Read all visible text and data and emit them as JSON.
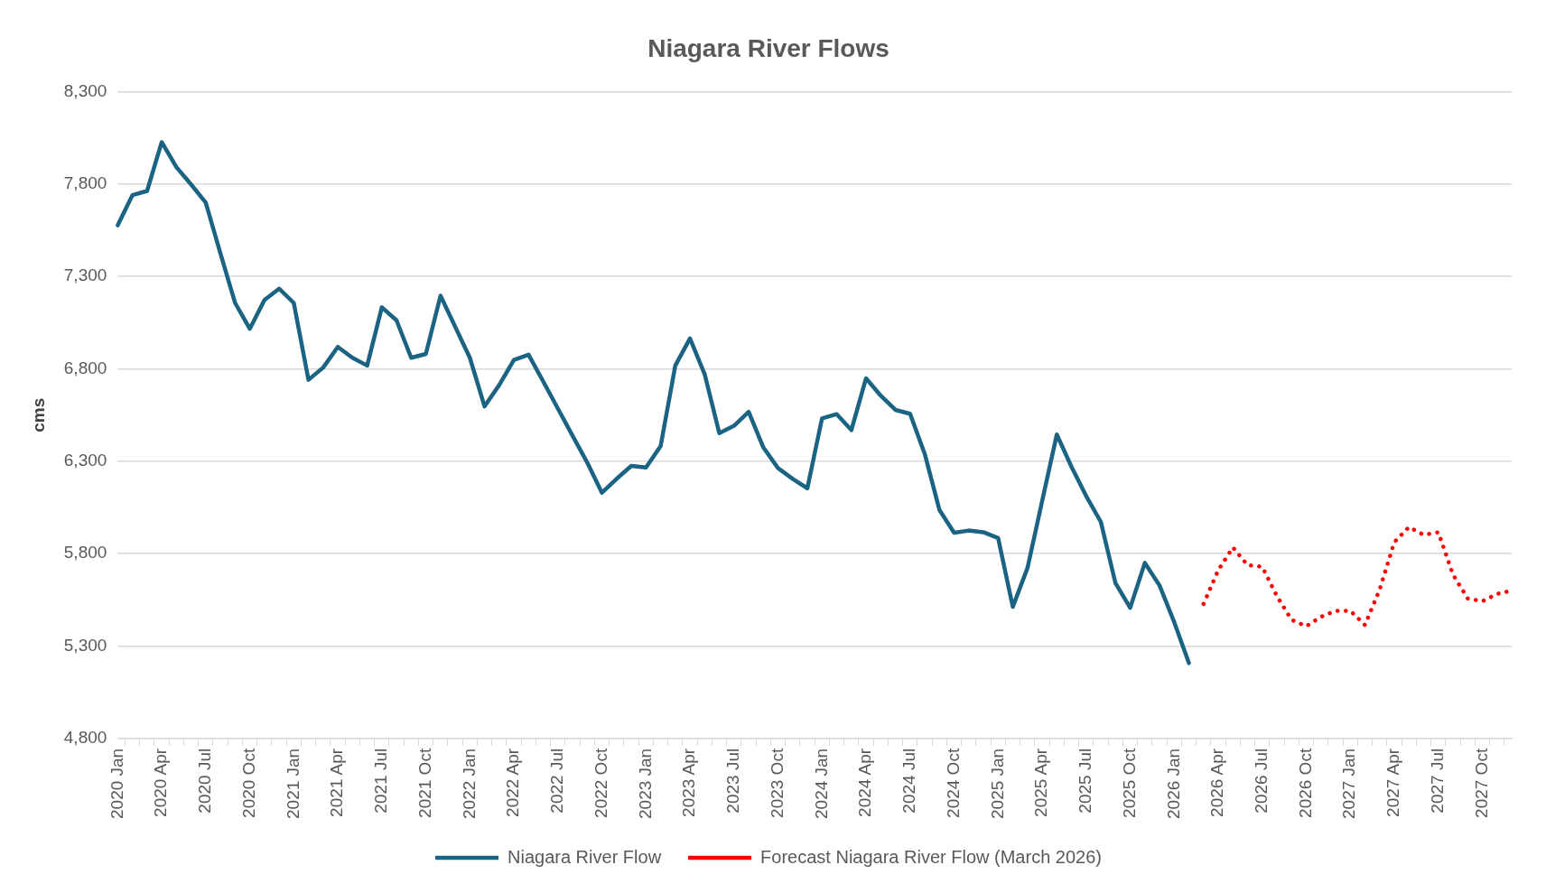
{
  "chart_data": {
    "type": "line",
    "title": "Niagara River Flows",
    "ylabel": "cms",
    "categories": [
      "2020 Jan",
      null,
      null,
      "2020 Apr",
      null,
      null,
      "2020 Jul",
      null,
      null,
      "2020 Oct",
      null,
      null,
      "2021 Jan",
      null,
      null,
      "2021 Apr",
      null,
      null,
      "2021 Jul",
      null,
      null,
      "2021 Oct",
      null,
      null,
      "2022 Jan",
      null,
      null,
      "2022 Apr",
      null,
      null,
      "2022 Jul",
      null,
      null,
      "2022 Oct",
      null,
      null,
      "2023 Jan",
      null,
      null,
      "2023 Apr",
      null,
      null,
      "2023 Jul",
      null,
      null,
      "2023 Oct",
      null,
      null,
      "2024 Jan",
      null,
      null,
      "2024 Apr",
      null,
      null,
      "2024 Jul",
      null,
      null,
      "2024 Oct",
      null,
      null,
      "2025 Jan",
      null,
      null,
      "2025 Apr",
      null,
      null,
      "2025 Jul",
      null,
      null,
      "2025 Oct",
      null,
      null,
      "2026 Jan",
      null,
      null,
      "2026 Apr",
      null,
      null,
      "2026 Jul",
      null,
      null,
      "2026 Oct",
      null,
      null,
      "2027 Jan",
      null,
      null,
      "2027 Apr",
      null,
      null,
      "2027 Jul",
      null,
      null,
      "2027 Oct",
      null,
      null
    ],
    "series": [
      {
        "name": "Niagara River Flow",
        "color": "#1b6383",
        "line_style": "solid",
        "values": [
          7577,
          7740,
          7763,
          8027,
          7892,
          7798,
          7700,
          7425,
          7157,
          7017,
          7173,
          7234,
          7157,
          6741,
          6807,
          6919,
          6860,
          6818,
          7133,
          7063,
          6860,
          6881,
          7196,
          7028,
          6860,
          6597,
          6713,
          6849,
          6877,
          6732,
          6585,
          6438,
          6293,
          6130,
          6205,
          6275,
          6266,
          6382,
          6818,
          6965,
          6772,
          6452,
          6492,
          6567,
          6375,
          6263,
          6205,
          6154,
          6532,
          6555,
          6469,
          6749,
          6655,
          6578,
          6557,
          6340,
          6037,
          5913,
          5925,
          5916,
          5885,
          5512,
          5722,
          6084,
          6445,
          6270,
          6112,
          5972,
          5640,
          5507,
          5750,
          5628,
          5430,
          5208,
          null,
          null,
          null,
          null,
          null,
          null,
          null,
          null,
          null,
          null,
          null,
          null,
          null,
          null,
          null,
          null,
          null,
          null,
          null,
          null,
          null,
          null
        ]
      },
      {
        "name": "Forecast Niagara River Flow (March 2026)",
        "color": "#ff0000",
        "line_style": "dotted",
        "values": [
          null,
          null,
          null,
          null,
          null,
          null,
          null,
          null,
          null,
          null,
          null,
          null,
          null,
          null,
          null,
          null,
          null,
          null,
          null,
          null,
          null,
          null,
          null,
          null,
          null,
          null,
          null,
          null,
          null,
          null,
          null,
          null,
          null,
          null,
          null,
          null,
          null,
          null,
          null,
          null,
          null,
          null,
          null,
          null,
          null,
          null,
          null,
          null,
          null,
          null,
          null,
          null,
          null,
          null,
          null,
          null,
          null,
          null,
          null,
          null,
          null,
          null,
          null,
          null,
          null,
          null,
          null,
          null,
          null,
          null,
          null,
          null,
          null,
          null,
          5528,
          5710,
          5834,
          5738,
          5729,
          5570,
          5442,
          5407,
          5458,
          5491,
          5491,
          5414,
          5605,
          5862,
          5944,
          5902,
          5916,
          5687,
          5558,
          5542,
          5582,
          5600
        ]
      }
    ],
    "ylim": [
      4800,
      8300
    ],
    "yticks": [
      {
        "value": 4800,
        "label": "4,800"
      },
      {
        "value": 5300,
        "label": "5,300"
      },
      {
        "value": 5800,
        "label": "5,800"
      },
      {
        "value": 6300,
        "label": "6,300"
      },
      {
        "value": 6800,
        "label": "6,800"
      },
      {
        "value": 7300,
        "label": "7,300"
      },
      {
        "value": 7800,
        "label": "7,800"
      },
      {
        "value": 8300,
        "label": "8,300"
      }
    ],
    "grid": "y",
    "legend": "bottom",
    "marker": "none"
  }
}
